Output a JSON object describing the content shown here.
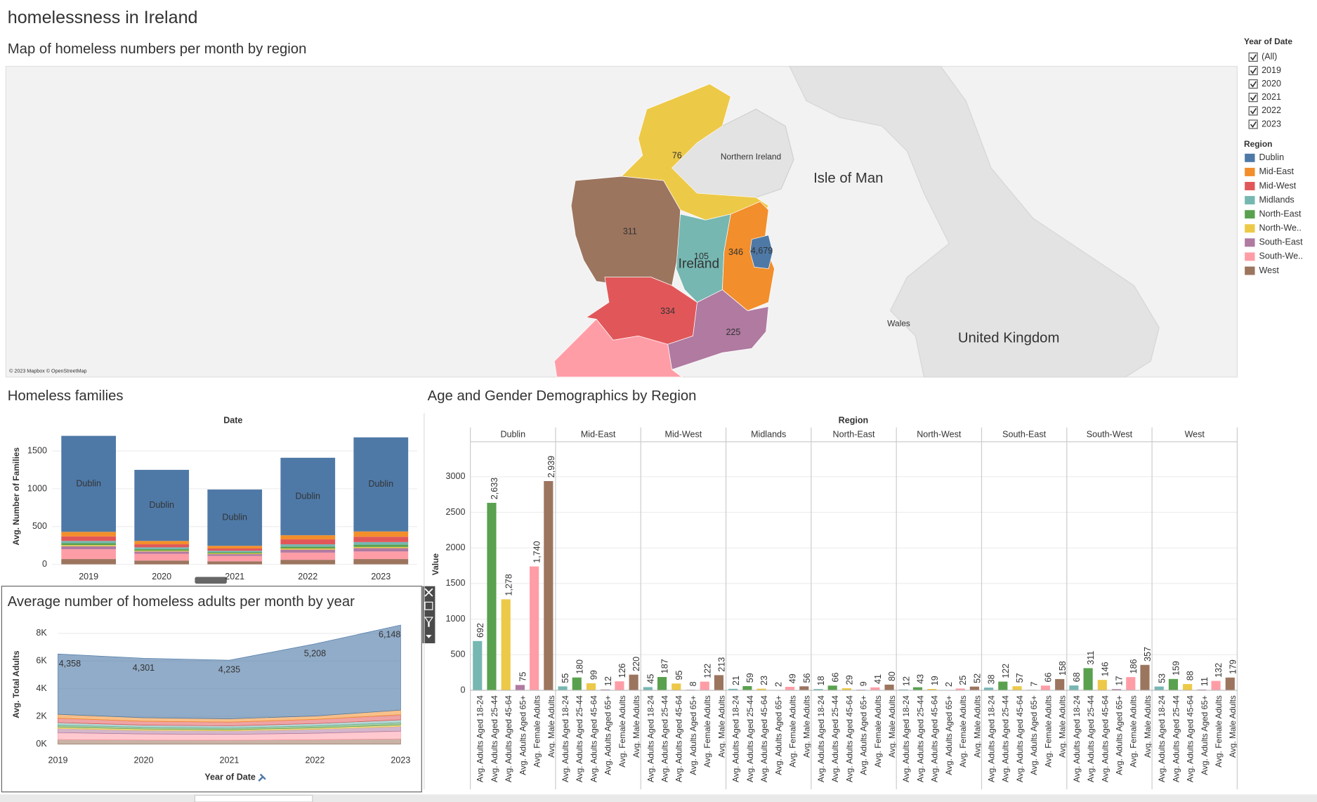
{
  "title": "homelessness in Ireland",
  "filter": {
    "title": "Year of Date",
    "items": [
      "(All)",
      "2019",
      "2020",
      "2021",
      "2022",
      "2023"
    ],
    "checked": [
      true,
      true,
      true,
      true,
      true,
      true
    ]
  },
  "legend": {
    "title": "Region",
    "labels": [
      "Dublin",
      "Mid-East",
      "Mid-West",
      "Midlands",
      "North-East",
      "North-We..",
      "South-East",
      "South-We..",
      "West"
    ],
    "colors": [
      "#4e79a7",
      "#f28e2b",
      "#e15759",
      "#76b7b2",
      "#59a14f",
      "#edc948",
      "#b07aa1",
      "#ff9da7",
      "#9c755f"
    ]
  },
  "map": {
    "title": "Map of homeless numbers per month by region",
    "regions": [
      "North-West",
      "West",
      "Midlands",
      "Mid-East",
      "Dublin",
      "Mid-West",
      "South-East"
    ],
    "values": [
      76,
      311,
      105,
      346,
      4679,
      334,
      225
    ],
    "value_labels": [
      "76",
      "311",
      "105",
      "346",
      "4,679",
      "334",
      "225"
    ],
    "place_names": [
      "Northern Ireland",
      "Isle of Man",
      "Ireland",
      "Wales",
      "United Kingdom"
    ],
    "attribution": "© 2023 Mapbox © OpenStreetMap"
  },
  "chart_data": [
    {
      "type": "stacked_bar",
      "title": "Homeless families",
      "x_label": "Date",
      "y_label": "Avg. Number of Families",
      "categories": [
        "2019",
        "2020",
        "2021",
        "2022",
        "2023"
      ],
      "series": [
        {
          "name": "Dublin",
          "color": "#4e79a7",
          "values": [
            1270,
            940,
            745,
            1025,
            1245
          ]
        },
        {
          "name": "Mid-East",
          "color": "#f28e2b",
          "values": [
            60,
            45,
            35,
            55,
            70
          ]
        },
        {
          "name": "Mid-West",
          "color": "#e15759",
          "values": [
            60,
            40,
            30,
            65,
            70
          ]
        },
        {
          "name": "Midlands",
          "color": "#76b7b2",
          "values": [
            30,
            25,
            20,
            30,
            35
          ]
        },
        {
          "name": "North-East",
          "color": "#59a14f",
          "values": [
            25,
            20,
            15,
            25,
            30
          ]
        },
        {
          "name": "North-West",
          "color": "#edc948",
          "values": [
            15,
            10,
            10,
            15,
            15
          ]
        },
        {
          "name": "South-East",
          "color": "#b07aa1",
          "values": [
            40,
            30,
            25,
            40,
            45
          ]
        },
        {
          "name": "South-West",
          "color": "#ff9da7",
          "values": [
            130,
            90,
            70,
            95,
            100
          ]
        },
        {
          "name": "West",
          "color": "#9c755f",
          "values": [
            70,
            50,
            40,
            60,
            70
          ]
        }
      ],
      "ylim": [
        0,
        1800
      ],
      "yticks": [
        0,
        500,
        1000,
        1500
      ],
      "grid": true
    },
    {
      "type": "stacked_area",
      "title": "Average number of  homeless adults per month by year",
      "x_label": "Year of Date",
      "y_label": "Avg. Total Adults",
      "x": [
        2019,
        2020,
        2021,
        2022,
        2023
      ],
      "xlim": [
        2019,
        2023
      ],
      "xticks": [
        2019,
        2020,
        2021,
        2022,
        2023
      ],
      "series": [
        {
          "name": "Dublin",
          "color": "#4e79a7",
          "values": [
            4358,
            4301,
            4235,
            5208,
            6148
          ],
          "value_labels": [
            "4,358",
            "4,301",
            "4,235",
            "5,208",
            "6,148"
          ]
        },
        {
          "name": "Mid-East",
          "color": "#f28e2b",
          "values": [
            280,
            250,
            240,
            250,
            330
          ]
        },
        {
          "name": "Mid-West",
          "color": "#e15759",
          "values": [
            320,
            280,
            270,
            300,
            370
          ]
        },
        {
          "name": "Midlands",
          "color": "#76b7b2",
          "values": [
            180,
            160,
            155,
            170,
            200
          ]
        },
        {
          "name": "North-East",
          "color": "#59a14f",
          "values": [
            150,
            130,
            125,
            145,
            170
          ]
        },
        {
          "name": "North-West",
          "color": "#edc948",
          "values": [
            100,
            90,
            85,
            95,
            110
          ]
        },
        {
          "name": "South-East",
          "color": "#b07aa1",
          "values": [
            300,
            260,
            250,
            290,
            340
          ]
        },
        {
          "name": "South-West",
          "color": "#ff9da7",
          "values": [
            500,
            440,
            420,
            470,
            560
          ]
        },
        {
          "name": "West",
          "color": "#9c755f",
          "values": [
            320,
            290,
            280,
            310,
            370
          ]
        }
      ],
      "ylim": [
        0,
        8800
      ],
      "yticks": [
        {
          "value": 0,
          "label": "0K"
        },
        {
          "value": 2000,
          "label": "2K"
        },
        {
          "value": 4000,
          "label": "4K"
        },
        {
          "value": 6000,
          "label": "6K"
        },
        {
          "value": 8000,
          "label": "8K"
        }
      ],
      "grid": true
    },
    {
      "type": "faceted_bar",
      "title": "Age and Gender Demographics by Region",
      "facet_label": "Region",
      "y_label": "Value",
      "categories": [
        "Avg. Adults Aged 18-24",
        "Avg. Adults Aged 25-44",
        "Avg. Adults Aged 45-64",
        "Avg. Adults Aged 65+",
        "Avg. Female Adults",
        "Avg. Male Adults"
      ],
      "colors": [
        "#76b7b2",
        "#59a14f",
        "#edc948",
        "#b07aa1",
        "#ff9da7",
        "#9c755f"
      ],
      "facets": [
        {
          "name": "Dublin",
          "values": [
            692,
            2633,
            1278,
            75,
            1740,
            2939
          ],
          "value_labels": [
            "692",
            "2,633",
            "1,278",
            "75",
            "1,740",
            "2,939"
          ]
        },
        {
          "name": "Mid-East",
          "values": [
            55,
            180,
            99,
            12,
            126,
            220
          ],
          "value_labels": [
            "55",
            "180",
            "99",
            "12",
            "126",
            "220"
          ]
        },
        {
          "name": "Mid-West",
          "values": [
            45,
            187,
            95,
            8,
            122,
            213
          ],
          "value_labels": [
            "45",
            "187",
            "95",
            "8",
            "122",
            "213"
          ]
        },
        {
          "name": "Midlands",
          "values": [
            21,
            59,
            23,
            2,
            49,
            56
          ],
          "value_labels": [
            "21",
            "59",
            "23",
            "2",
            "49",
            "56"
          ]
        },
        {
          "name": "North-East",
          "values": [
            18,
            66,
            29,
            9,
            41,
            80
          ],
          "value_labels": [
            "18",
            "66",
            "29",
            "9",
            "41",
            "80"
          ]
        },
        {
          "name": "North-West",
          "values": [
            12,
            43,
            19,
            2,
            25,
            52
          ],
          "value_labels": [
            "12",
            "43",
            "19",
            "2",
            "25",
            "52"
          ]
        },
        {
          "name": "South-East",
          "values": [
            38,
            122,
            57,
            7,
            66,
            158
          ],
          "value_labels": [
            "38",
            "122",
            "57",
            "7",
            "66",
            "158"
          ]
        },
        {
          "name": "South-West",
          "values": [
            68,
            311,
            146,
            17,
            186,
            357
          ],
          "value_labels": [
            "68",
            "311",
            "146",
            "17",
            "186",
            "357"
          ]
        },
        {
          "name": "West",
          "values": [
            53,
            159,
            88,
            11,
            132,
            179
          ],
          "value_labels": [
            "53",
            "159",
            "88",
            "11",
            "132",
            "179"
          ]
        }
      ],
      "ylim": [
        0,
        3350
      ],
      "yticks": [
        0,
        500,
        1000,
        1500,
        2000,
        2500,
        3000
      ],
      "grid": true
    }
  ]
}
